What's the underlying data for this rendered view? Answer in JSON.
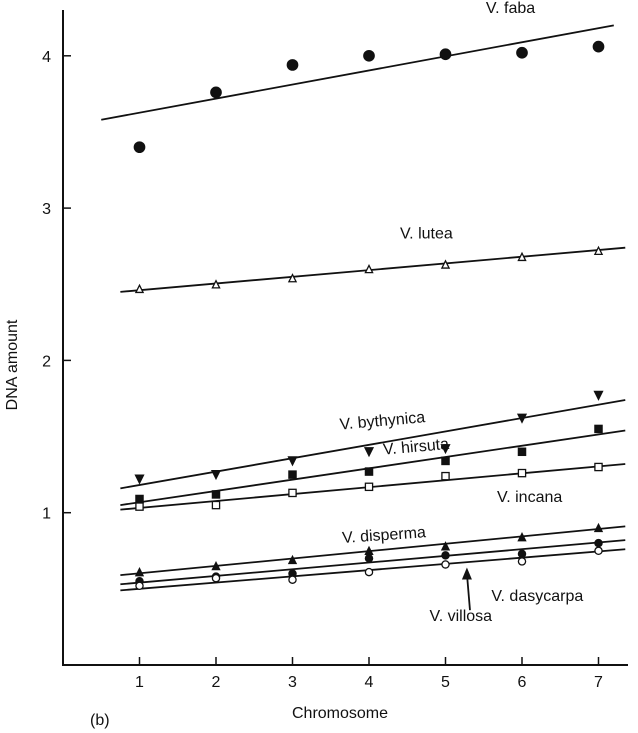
{
  "chart_data": {
    "type": "scatter",
    "panel_label": "(b)",
    "title": "",
    "xlabel": "Chromosome",
    "ylabel": "DNA amount",
    "xlim": [
      0,
      7.3
    ],
    "ylim": [
      0,
      4.25
    ],
    "xticks": [
      1,
      2,
      3,
      4,
      5,
      6,
      7
    ],
    "yticks": [
      1,
      2,
      3,
      4
    ],
    "grid": false,
    "legend": "none (series labelled next to fitted lines)",
    "marker_color": "#111111",
    "series": [
      {
        "name": "V. faba",
        "marker": "filled-circle",
        "x": [
          1,
          2,
          3,
          4,
          5,
          6,
          7
        ],
        "y": [
          3.4,
          3.76,
          3.94,
          4.0,
          4.01,
          4.02,
          4.06
        ],
        "fit": {
          "x": [
            0.5,
            7.2
          ],
          "y": [
            3.58,
            4.2
          ]
        }
      },
      {
        "name": "V. lutea",
        "marker": "open-triangle",
        "x": [
          1,
          2,
          3,
          4,
          5,
          6,
          7
        ],
        "y": [
          2.47,
          2.5,
          2.54,
          2.6,
          2.63,
          2.68,
          2.72
        ],
        "fit": {
          "x": [
            0.75,
            7.35
          ],
          "y": [
            2.45,
            2.74
          ]
        }
      },
      {
        "name": "V. bythynica",
        "marker": "filled-inverted-triangle",
        "x": [
          1,
          2,
          3,
          4,
          5,
          6,
          7
        ],
        "y": [
          1.22,
          1.25,
          1.34,
          1.4,
          1.42,
          1.62,
          1.77
        ],
        "fit": {
          "x": [
            0.75,
            7.35
          ],
          "y": [
            1.16,
            1.74
          ]
        }
      },
      {
        "name": "V. hirsuta",
        "marker": "filled-square",
        "x": [
          1,
          2,
          3,
          4,
          5,
          6,
          7
        ],
        "y": [
          1.09,
          1.12,
          1.25,
          1.27,
          1.34,
          1.4,
          1.55
        ],
        "fit": {
          "x": [
            0.75,
            7.35
          ],
          "y": [
            1.05,
            1.54
          ]
        }
      },
      {
        "name": "V. incana",
        "marker": "open-square",
        "x": [
          1,
          2,
          3,
          4,
          5,
          6,
          7
        ],
        "y": [
          1.04,
          1.05,
          1.13,
          1.17,
          1.24,
          1.26,
          1.3
        ],
        "fit": {
          "x": [
            0.75,
            7.35
          ],
          "y": [
            1.02,
            1.32
          ]
        }
      },
      {
        "name": "V. disperma",
        "marker": "filled-triangle",
        "x": [
          1,
          2,
          3,
          4,
          5,
          6,
          7
        ],
        "y": [
          0.61,
          0.65,
          0.69,
          0.75,
          0.78,
          0.84,
          0.9
        ],
        "fit": {
          "x": [
            0.75,
            7.35
          ],
          "y": [
            0.59,
            0.91
          ]
        }
      },
      {
        "name": "V. dasycarpa",
        "marker": "filled-circle",
        "x": [
          1,
          2,
          3,
          4,
          5,
          6,
          7
        ],
        "y": [
          0.55,
          0.58,
          0.6,
          0.7,
          0.72,
          0.73,
          0.8
        ],
        "fit": {
          "x": [
            0.75,
            7.35
          ],
          "y": [
            0.53,
            0.82
          ]
        }
      },
      {
        "name": "V. villosa",
        "marker": "open-circle",
        "x": [
          1,
          2,
          3,
          4,
          5,
          6,
          7
        ],
        "y": [
          0.52,
          0.57,
          0.56,
          0.61,
          0.66,
          0.68,
          0.75
        ],
        "fit": {
          "x": [
            0.75,
            7.35
          ],
          "y": [
            0.49,
            0.76
          ]
        }
      }
    ]
  }
}
